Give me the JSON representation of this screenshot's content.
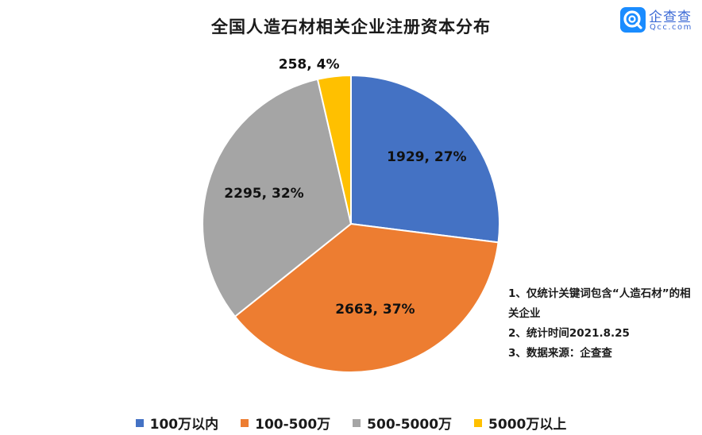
{
  "logo": {
    "name": "企查查",
    "url": "Qcc.com"
  },
  "notes": [
    "1、仅统计关键词包含“人造石材”的相关企业",
    "2、统计时间2021.8.25",
    "3、数据来源：企查查"
  ],
  "chart_data": {
    "type": "pie",
    "title": "全国人造石材相关企业注册资本分布",
    "categories": [
      "100万以内",
      "100-500万",
      "500-5000万",
      "5000万以上"
    ],
    "values": [
      1929,
      2663,
      2295,
      258
    ],
    "percents": [
      27,
      37,
      32,
      4
    ],
    "labels": [
      "1929, 27%",
      "2663, 37%",
      "2295, 32%",
      "258, 4%"
    ],
    "colors": [
      "#4472C4",
      "#ED7D31",
      "#A5A5A5",
      "#FFC000"
    ],
    "legend_position": "bottom",
    "start_angle": "12 o'clock",
    "direction": "clockwise"
  }
}
